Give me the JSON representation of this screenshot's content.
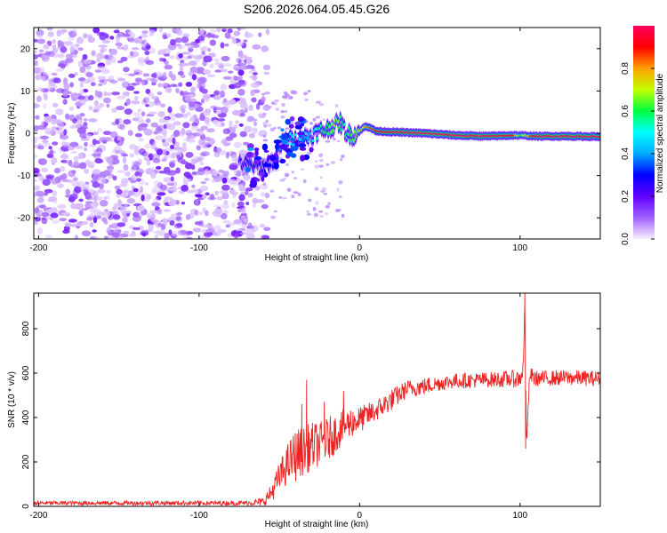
{
  "figure": {
    "title": "S206.2026.064.05.45.G26"
  },
  "chart_data": [
    {
      "type": "heatmap",
      "title": "S206.2026.064.05.45.G26",
      "xlabel": "Height of straight line (km)",
      "ylabel": "Frequency (Hz)",
      "xlim": [
        -203,
        150
      ],
      "ylim": [
        -25,
        25
      ],
      "x_ticks": [
        -200,
        -100,
        0,
        100
      ],
      "y_ticks": [
        -20,
        -10,
        0,
        10,
        20
      ],
      "colorbar": {
        "label": "Normalized spectral amplitude",
        "range": [
          0,
          1
        ],
        "ticks": [
          0.0,
          0.2,
          0.4,
          0.6,
          0.8
        ],
        "colormap": [
          "#f8f0ff",
          "#a060ff",
          "#6000ff",
          "#0000ff",
          "#00aaff",
          "#00ffff",
          "#00ff40",
          "#c0ff00",
          "#ffa000",
          "#ff0000",
          "#ff0060"
        ]
      },
      "noise_region_x": [
        -203,
        -65
      ],
      "ridge": {
        "x": [
          -75,
          -68,
          -60,
          -52,
          -48,
          -44,
          -40,
          -35,
          -30,
          -25,
          -20,
          -15,
          -12,
          -8,
          -4,
          0,
          3,
          6,
          10,
          20,
          40,
          60,
          80,
          95,
          100,
          110,
          130,
          150
        ],
        "freq": [
          -7,
          -7.5,
          -8,
          -6,
          -2,
          -1.5,
          -1.5,
          -1,
          -0.5,
          0.5,
          1,
          2,
          2.5,
          0,
          -0.5,
          0.5,
          1.5,
          1.5,
          0.5,
          0.3,
          0,
          -0.5,
          -0.7,
          -0.5,
          -0.5,
          -0.7,
          -0.7,
          -0.8
        ],
        "amplitude": [
          0.25,
          0.3,
          0.3,
          0.3,
          0.45,
          0.5,
          0.45,
          0.5,
          0.45,
          0.55,
          0.6,
          0.7,
          0.6,
          0.55,
          0.65,
          0.7,
          0.8,
          0.85,
          0.9,
          0.95,
          1.0,
          1.0,
          1.0,
          0.95,
          0.6,
          1.0,
          1.0,
          1.0
        ]
      }
    },
    {
      "type": "line",
      "xlabel": "Height of straight line (km)",
      "ylabel": "SNR (10 * v/v)",
      "xlim": [
        -203,
        150
      ],
      "ylim": [
        0,
        960
      ],
      "x_ticks": [
        -200,
        -100,
        0,
        100
      ],
      "y_ticks": [
        0,
        200,
        400,
        600,
        800
      ],
      "series": [
        {
          "color": "#ee2222",
          "envelope_x": [
            -203,
            -150,
            -100,
            -70,
            -60,
            -55,
            -50,
            -45,
            -40,
            -35,
            -30,
            -25,
            -20,
            -15,
            -10,
            -5,
            0,
            10,
            20,
            30,
            40,
            50,
            60,
            80,
            100,
            102,
            103,
            104,
            106,
            110,
            130,
            150
          ],
          "envelope_mean": [
            15,
            15,
            15,
            15,
            20,
            60,
            130,
            190,
            230,
            250,
            270,
            280,
            300,
            330,
            360,
            380,
            390,
            430,
            480,
            530,
            540,
            555,
            565,
            570,
            575,
            620,
            900,
            270,
            590,
            575,
            580,
            575
          ],
          "envelope_noise": [
            10,
            10,
            10,
            10,
            20,
            40,
            70,
            90,
            120,
            110,
            110,
            100,
            100,
            90,
            80,
            70,
            60,
            50,
            50,
            40,
            40,
            35,
            35,
            35,
            40,
            40,
            0,
            0,
            40,
            35,
            35,
            35
          ],
          "spikes": [
            {
              "x": -33,
              "y": 570
            },
            {
              "x": -36,
              "y": 460
            },
            {
              "x": -22,
              "y": 470
            },
            {
              "x": -10,
              "y": 520
            },
            {
              "x": 103,
              "y": 960
            },
            {
              "x": 103.5,
              "y": 260
            }
          ]
        }
      ]
    }
  ]
}
